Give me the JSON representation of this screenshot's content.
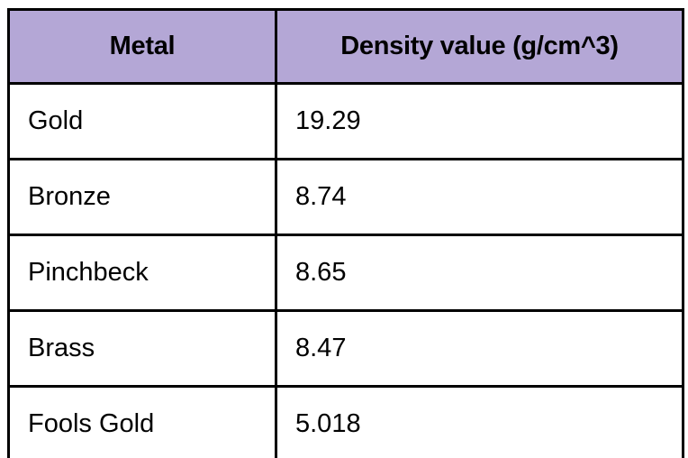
{
  "colors": {
    "header_background": "#b4a7d6",
    "border": "#000000",
    "text": "#000000",
    "cell_background": "#ffffff"
  },
  "chart_data": {
    "type": "table",
    "title": "",
    "columns": [
      "Metal",
      "Density value (g/cm^3)"
    ],
    "rows": [
      {
        "metal": "Gold",
        "density": "19.29"
      },
      {
        "metal": "Bronze",
        "density": "8.74"
      },
      {
        "metal": "Pinchbeck",
        "density": "8.65"
      },
      {
        "metal": "Brass",
        "density": "8.47"
      },
      {
        "metal": "Fools Gold",
        "density": "5.018"
      }
    ],
    "layout": {
      "header_bg": "#b4a7d6",
      "header_text_align": "center",
      "body_text_align": "left",
      "grid": "all-borders"
    }
  }
}
